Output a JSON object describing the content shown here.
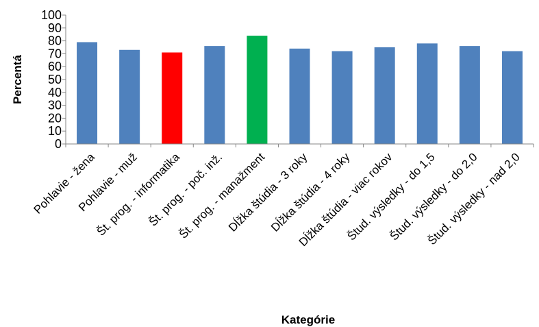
{
  "chart_data": {
    "type": "bar",
    "title": "",
    "xlabel": "Kategórie",
    "ylabel": "Percentá",
    "ylim": [
      0,
      100
    ],
    "yticks": [
      0,
      10,
      20,
      30,
      40,
      50,
      60,
      70,
      80,
      90,
      100
    ],
    "grid": false,
    "legend": "none",
    "categories": [
      "Pohlavie - žena",
      "Pohlavie - muž",
      "Št. prog. - informatika",
      "Št. prog. - poč. inž.",
      "Št. prog. - manažment",
      "Dĺžka štúdia - 3 roky",
      "Dĺžka štúdia - 4 roky",
      "Dĺžka štúdia - viac rokov",
      "Štud. výsledky - do 1,5",
      "Štud. výsledky - do 2,0",
      "Štud. výsledky - nad 2,0"
    ],
    "values": [
      79,
      73,
      71,
      76,
      84,
      74,
      72,
      75,
      78,
      76,
      72
    ],
    "colors": [
      "#4F81BD",
      "#4F81BD",
      "#FF0000",
      "#4F81BD",
      "#00B050",
      "#4F81BD",
      "#4F81BD",
      "#4F81BD",
      "#4F81BD",
      "#4F81BD",
      "#4F81BD"
    ]
  }
}
